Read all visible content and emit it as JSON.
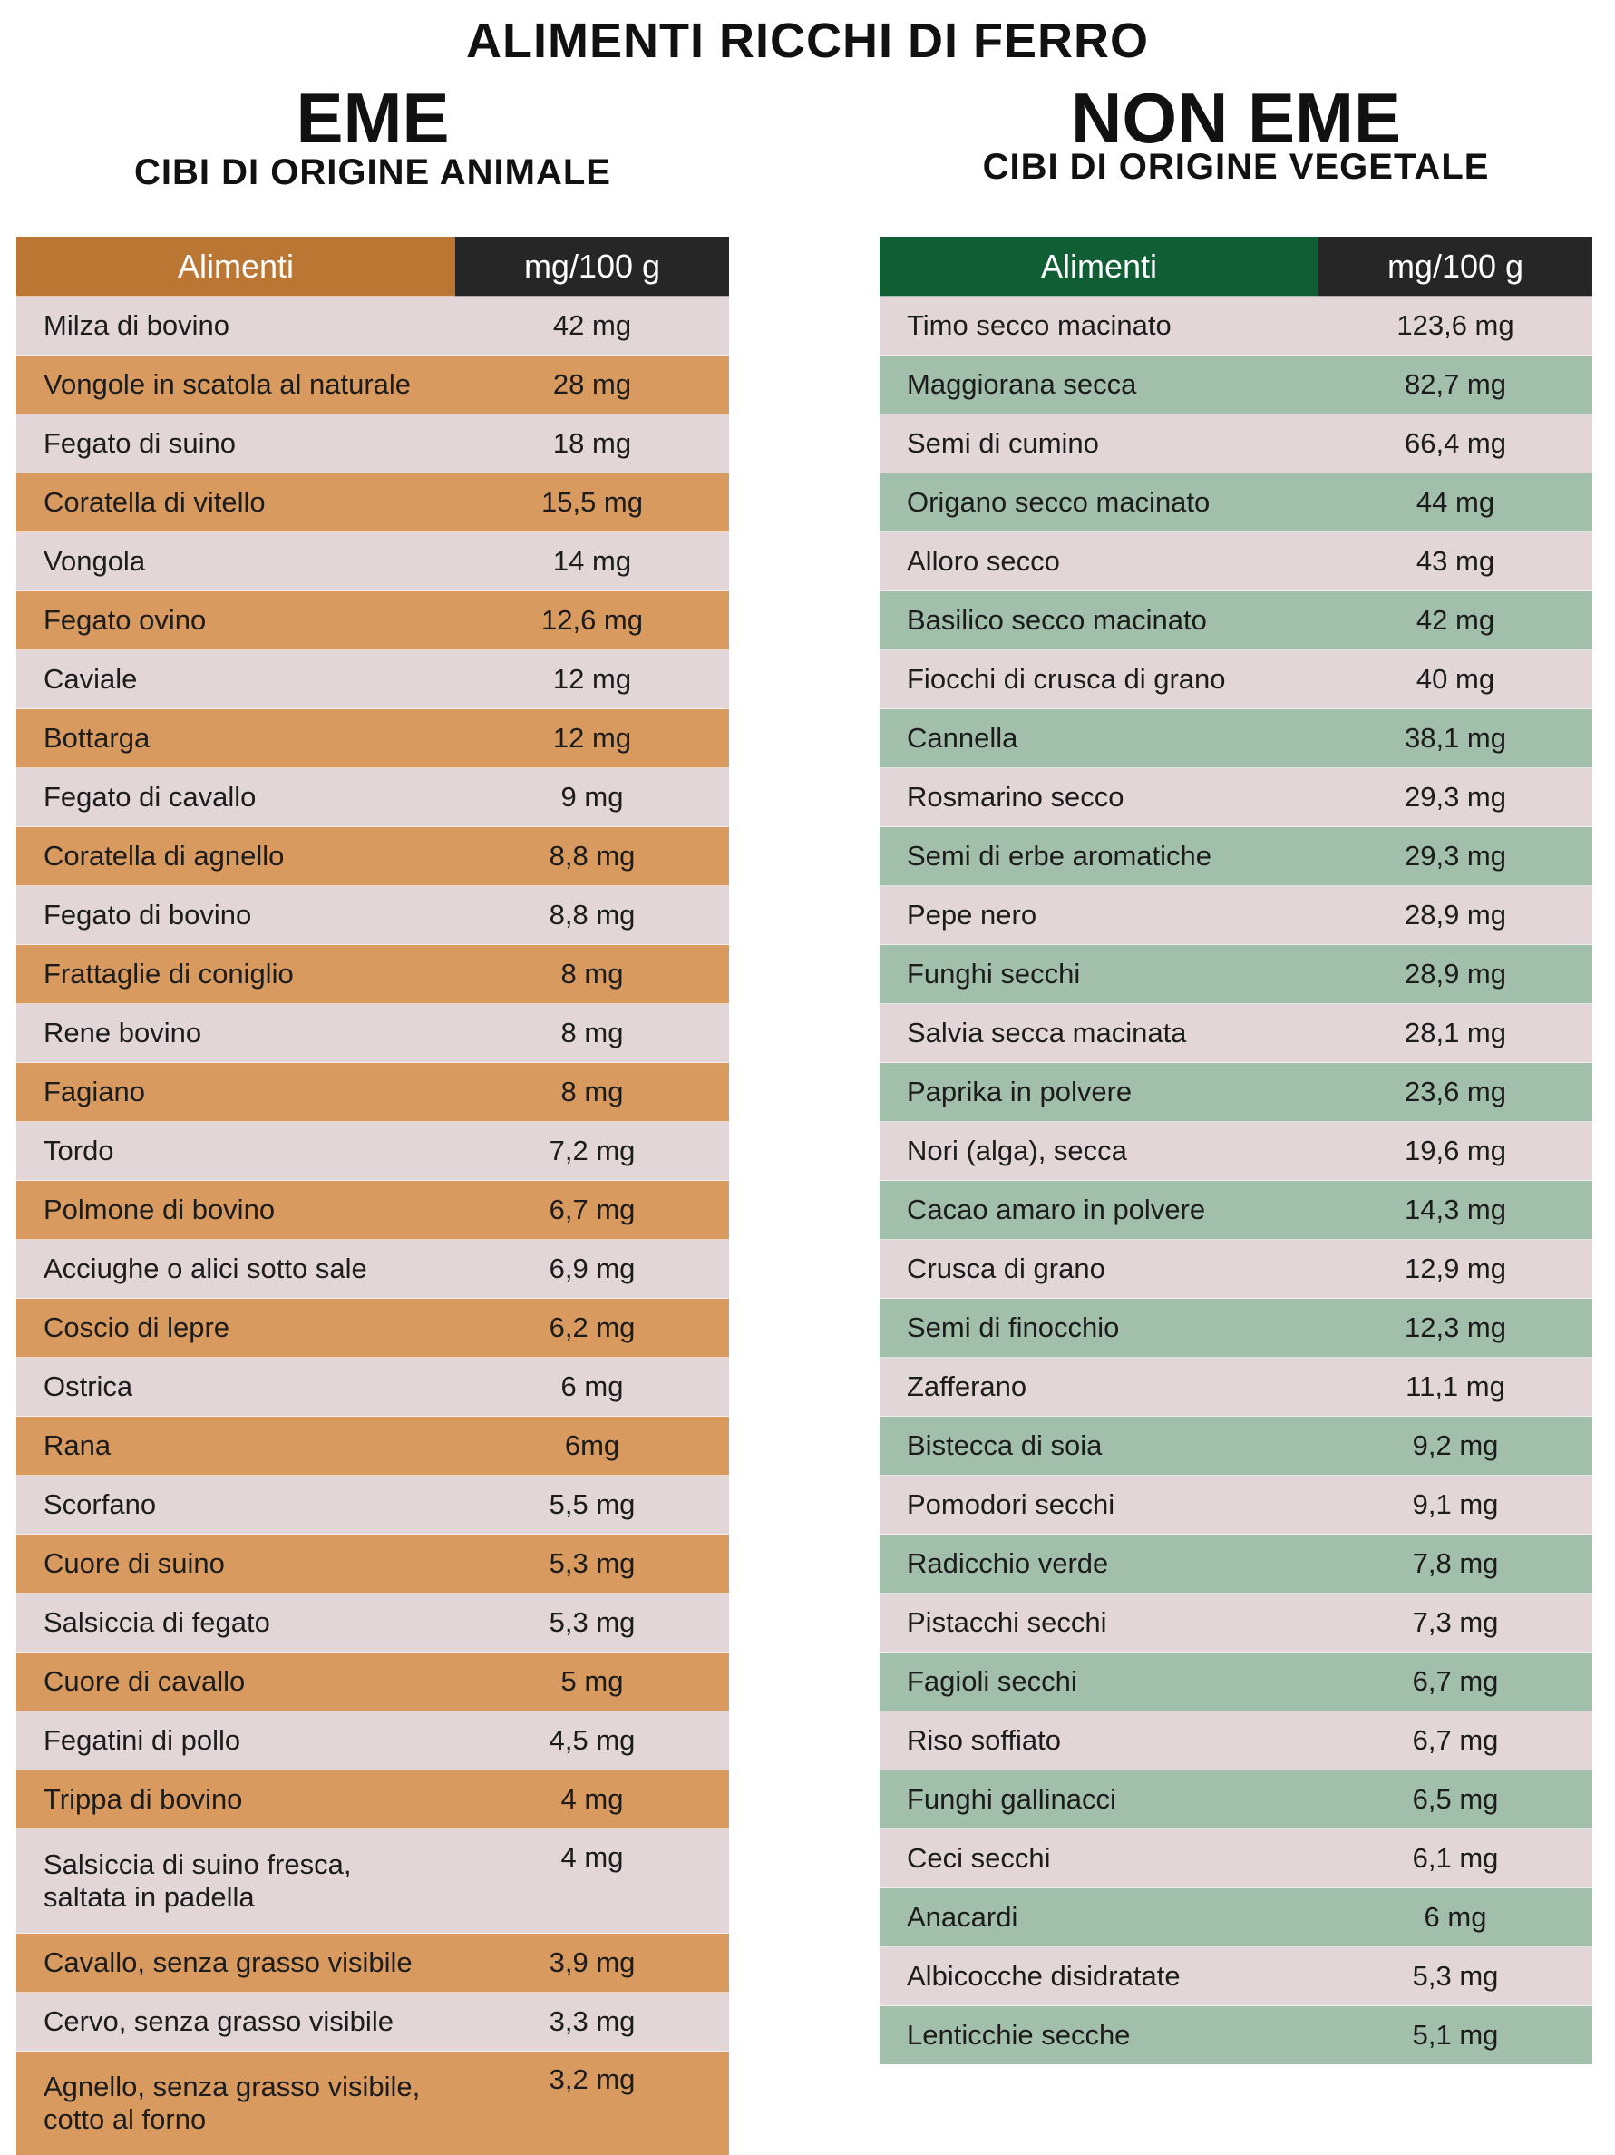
{
  "title": "ALIMENTI RICCHI DI FERRO",
  "eme": {
    "heading": "EME",
    "subheading": "CIBI DI ORIGINE ANIMALE",
    "col_food": "Alimenti",
    "col_value": "mg/100 g",
    "colors": {
      "header": "#bb7634",
      "row_alt": "#d99a5f",
      "row": "#e2d6d9"
    },
    "rows": [
      {
        "food": "Milza di bovino",
        "value": "42 mg"
      },
      {
        "food": "Vongole in scatola al naturale",
        "value": "28 mg"
      },
      {
        "food": "Fegato di suino",
        "value": "18 mg"
      },
      {
        "food": "Coratella di vitello",
        "value": "15,5 mg"
      },
      {
        "food": "Vongola",
        "value": "14 mg"
      },
      {
        "food": "Fegato ovino",
        "value": "12,6 mg"
      },
      {
        "food": "Caviale",
        "value": "12 mg"
      },
      {
        "food": "Bottarga",
        "value": "12 mg"
      },
      {
        "food": "Fegato di cavallo",
        "value": "9 mg"
      },
      {
        "food": "Coratella di agnello",
        "value": "8,8 mg"
      },
      {
        "food": "Fegato di bovino",
        "value": "8,8 mg"
      },
      {
        "food": "Frattaglie di coniglio",
        "value": "8 mg"
      },
      {
        "food": "Rene bovino",
        "value": "8 mg"
      },
      {
        "food": "Fagiano",
        "value": "8 mg"
      },
      {
        "food": "Tordo",
        "value": "7,2 mg"
      },
      {
        "food": "Polmone di bovino",
        "value": "6,7 mg"
      },
      {
        "food": "Acciughe o alici sotto sale",
        "value": "6,9 mg"
      },
      {
        "food": "Coscio di lepre",
        "value": "6,2 mg"
      },
      {
        "food": "Ostrica",
        "value": "6 mg"
      },
      {
        "food": "Rana",
        "value": "6mg"
      },
      {
        "food": "Scorfano",
        "value": "5,5 mg"
      },
      {
        "food": "Cuore di suino",
        "value": "5,3 mg"
      },
      {
        "food": "Salsiccia di fegato",
        "value": "5,3 mg"
      },
      {
        "food": "Cuore di cavallo",
        "value": "5 mg"
      },
      {
        "food": "Fegatini di pollo",
        "value": "4,5 mg"
      },
      {
        "food": "Trippa di bovino",
        "value": "4 mg"
      },
      {
        "food": "Salsiccia di suino fresca,",
        "food2": "saltata in padella",
        "value": "4 mg"
      },
      {
        "food": "Cavallo, senza grasso visibile",
        "value": "3,9 mg"
      },
      {
        "food": "Cervo, senza grasso visibile",
        "value": "3,3 mg"
      },
      {
        "food": "Agnello, senza grasso visibile,",
        "food2": "cotto al forno",
        "value": "3,2 mg"
      }
    ]
  },
  "non_eme": {
    "heading": "NON EME",
    "subheading": "CIBI DI ORIGINE VEGETALE",
    "col_food": "Alimenti",
    "col_value": "mg/100 g",
    "colors": {
      "header": "#0f5e34",
      "row_alt": "#a1bfab",
      "row": "#e2d6d9"
    },
    "rows": [
      {
        "food": "Timo secco macinato",
        "value": "123,6 mg"
      },
      {
        "food": "Maggiorana secca",
        "value": "82,7 mg"
      },
      {
        "food": "Semi di cumino",
        "value": "66,4 mg"
      },
      {
        "food": "Origano secco macinato",
        "value": "44 mg"
      },
      {
        "food": "Alloro secco",
        "value": "43 mg"
      },
      {
        "food": "Basilico secco macinato",
        "value": "42 mg"
      },
      {
        "food": "Fiocchi di crusca di grano",
        "value": "40 mg"
      },
      {
        "food": "Cannella",
        "value": "38,1 mg"
      },
      {
        "food": "Rosmarino secco",
        "value": "29,3 mg"
      },
      {
        "food": "Semi di erbe aromatiche",
        "value": "29,3 mg"
      },
      {
        "food": "Pepe nero",
        "value": "28,9 mg"
      },
      {
        "food": "Funghi secchi",
        "value": "28,9 mg"
      },
      {
        "food": "Salvia secca macinata",
        "value": "28,1 mg"
      },
      {
        "food": "Paprika in polvere",
        "value": "23,6 mg"
      },
      {
        "food": "Nori (alga), secca",
        "value": "19,6 mg"
      },
      {
        "food": "Cacao amaro in polvere",
        "value": "14,3 mg"
      },
      {
        "food": "Crusca di grano",
        "value": "12,9 mg"
      },
      {
        "food": "Semi di finocchio",
        "value": "12,3 mg"
      },
      {
        "food": "Zafferano",
        "value": "11,1 mg"
      },
      {
        "food": "Bistecca di soia",
        "value": "9,2 mg"
      },
      {
        "food": "Pomodori secchi",
        "value": "9,1 mg"
      },
      {
        "food": "Radicchio verde",
        "value": "7,8 mg"
      },
      {
        "food": "Pistacchi secchi",
        "value": "7,3 mg"
      },
      {
        "food": "Fagioli secchi",
        "value": "6,7 mg"
      },
      {
        "food": "Riso soffiato",
        "value": "6,7 mg"
      },
      {
        "food": "Funghi gallinacci",
        "value": "6,5 mg"
      },
      {
        "food": "Ceci secchi",
        "value": "6,1 mg"
      },
      {
        "food": "Anacardi",
        "value": "6 mg"
      },
      {
        "food": "Albicocche disidratate",
        "value": "5,3 mg"
      },
      {
        "food": "Lenticchie secche",
        "value": "5,1 mg"
      }
    ]
  }
}
